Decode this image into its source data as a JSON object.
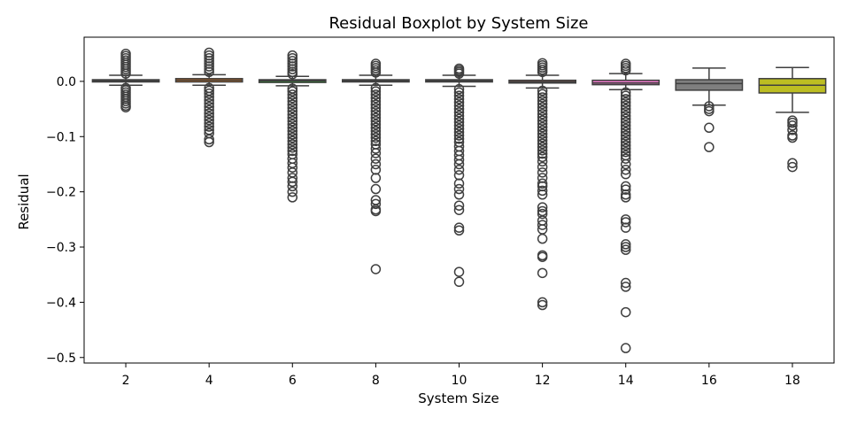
{
  "chart_data": {
    "type": "boxplot",
    "title": "Residual Boxplot by System Size",
    "xlabel": "System Size",
    "ylabel": "Residual",
    "ylim": [
      -0.51,
      0.08
    ],
    "yticks": [
      0.0,
      -0.1,
      -0.2,
      -0.3,
      -0.4,
      -0.5
    ],
    "ytick_labels": [
      "0.0",
      "−0.1",
      "−0.2",
      "−0.3",
      "−0.4",
      "−0.5"
    ],
    "grid": false,
    "legend": "none",
    "categories": [
      "2",
      "4",
      "6",
      "8",
      "10",
      "12",
      "14",
      "16",
      "18"
    ],
    "boxes": [
      {
        "category": "2",
        "color": "#1f77b4",
        "whisker_low": -0.007,
        "q1": -0.001,
        "median": 0.001,
        "q3": 0.003,
        "whisker_high": 0.011,
        "outliers": [
          0.05,
          0.046,
          0.042,
          0.038,
          0.034,
          0.03,
          0.026,
          0.022,
          0.018,
          0.014,
          -0.012,
          -0.016,
          -0.02,
          -0.024,
          -0.028,
          -0.032,
          -0.036,
          -0.04,
          -0.044,
          -0.047
        ]
      },
      {
        "category": "4",
        "color": "#ff7f0e",
        "whisker_low": -0.007,
        "q1": -0.001,
        "median": 0.002,
        "q3": 0.005,
        "whisker_high": 0.012,
        "outliers": [
          0.052,
          0.047,
          0.042,
          0.037,
          0.032,
          0.027,
          0.022,
          0.017,
          -0.012,
          -0.017,
          -0.022,
          -0.028,
          -0.034,
          -0.04,
          -0.046,
          -0.052,
          -0.058,
          -0.064,
          -0.07,
          -0.076,
          -0.082,
          -0.088,
          -0.094,
          -0.105,
          -0.11
        ]
      },
      {
        "category": "6",
        "color": "#2ca02c",
        "whisker_low": -0.008,
        "q1": -0.002,
        "median": 0.001,
        "q3": 0.003,
        "whisker_high": 0.009,
        "outliers": [
          0.047,
          0.042,
          0.037,
          0.032,
          0.027,
          0.022,
          0.017,
          0.013,
          -0.013,
          -0.018,
          -0.024,
          -0.03,
          -0.036,
          -0.042,
          -0.048,
          -0.054,
          -0.06,
          -0.066,
          -0.072,
          -0.078,
          -0.084,
          -0.09,
          -0.096,
          -0.102,
          -0.108,
          -0.114,
          -0.12,
          -0.126,
          -0.132,
          -0.14,
          -0.148,
          -0.156,
          -0.165,
          -0.175,
          -0.182,
          -0.19,
          -0.2,
          -0.21
        ]
      },
      {
        "category": "8",
        "color": "#d62728",
        "whisker_low": -0.007,
        "q1": -0.001,
        "median": 0.001,
        "q3": 0.003,
        "whisker_high": 0.011,
        "outliers": [
          0.032,
          0.028,
          0.024,
          0.02,
          0.016,
          -0.012,
          -0.018,
          -0.024,
          -0.03,
          -0.036,
          -0.042,
          -0.048,
          -0.054,
          -0.06,
          -0.066,
          -0.072,
          -0.078,
          -0.084,
          -0.09,
          -0.096,
          -0.102,
          -0.108,
          -0.114,
          -0.122,
          -0.13,
          -0.14,
          -0.15,
          -0.16,
          -0.175,
          -0.195,
          -0.215,
          -0.222,
          -0.232,
          -0.235,
          -0.34
        ]
      },
      {
        "category": "10",
        "color": "#9467bd",
        "whisker_low": -0.009,
        "q1": -0.001,
        "median": 0.001,
        "q3": 0.003,
        "whisker_high": 0.011,
        "outliers": [
          0.023,
          0.02,
          0.017,
          0.014,
          -0.014,
          -0.02,
          -0.026,
          -0.032,
          -0.038,
          -0.044,
          -0.05,
          -0.056,
          -0.062,
          -0.068,
          -0.074,
          -0.08,
          -0.086,
          -0.092,
          -0.098,
          -0.104,
          -0.11,
          -0.118,
          -0.126,
          -0.134,
          -0.142,
          -0.15,
          -0.16,
          -0.17,
          -0.185,
          -0.195,
          -0.205,
          -0.225,
          -0.233,
          -0.265,
          -0.27,
          -0.345,
          -0.363
        ]
      },
      {
        "category": "12",
        "color": "#8c564b",
        "whisker_low": -0.012,
        "q1": -0.003,
        "median": -0.001,
        "q3": 0.002,
        "whisker_high": 0.011,
        "outliers": [
          0.033,
          0.029,
          0.025,
          0.021,
          0.017,
          -0.017,
          -0.023,
          -0.029,
          -0.035,
          -0.041,
          -0.047,
          -0.053,
          -0.059,
          -0.065,
          -0.071,
          -0.077,
          -0.083,
          -0.089,
          -0.095,
          -0.101,
          -0.107,
          -0.113,
          -0.119,
          -0.125,
          -0.131,
          -0.137,
          -0.145,
          -0.155,
          -0.165,
          -0.175,
          -0.185,
          -0.19,
          -0.198,
          -0.205,
          -0.228,
          -0.235,
          -0.24,
          -0.252,
          -0.26,
          -0.268,
          -0.285,
          -0.315,
          -0.318,
          -0.347,
          -0.4,
          -0.405
        ]
      },
      {
        "category": "14",
        "color": "#e377c2",
        "whisker_low": -0.015,
        "q1": -0.006,
        "median": -0.003,
        "q3": 0.002,
        "whisker_high": 0.014,
        "outliers": [
          0.032,
          0.028,
          0.024,
          0.02,
          -0.02,
          -0.026,
          -0.032,
          -0.038,
          -0.044,
          -0.05,
          -0.056,
          -0.062,
          -0.068,
          -0.074,
          -0.08,
          -0.086,
          -0.092,
          -0.098,
          -0.104,
          -0.11,
          -0.116,
          -0.122,
          -0.128,
          -0.134,
          -0.14,
          -0.15,
          -0.16,
          -0.168,
          -0.19,
          -0.196,
          -0.205,
          -0.21,
          -0.25,
          -0.255,
          -0.265,
          -0.295,
          -0.3,
          -0.305,
          -0.365,
          -0.372,
          -0.418,
          -0.483
        ]
      },
      {
        "category": "16",
        "color": "#7f7f7f",
        "whisker_low": -0.043,
        "q1": -0.016,
        "median": -0.004,
        "q3": 0.003,
        "whisker_high": 0.024,
        "outliers": [
          -0.045,
          -0.05,
          -0.054,
          -0.084,
          -0.119
        ]
      },
      {
        "category": "18",
        "color": "#bcbd22",
        "whisker_low": -0.056,
        "q1": -0.021,
        "median": -0.007,
        "q3": 0.005,
        "whisker_high": 0.025,
        "outliers": [
          -0.071,
          -0.075,
          -0.08,
          -0.088,
          -0.098,
          -0.102,
          -0.148,
          -0.155
        ]
      }
    ]
  }
}
